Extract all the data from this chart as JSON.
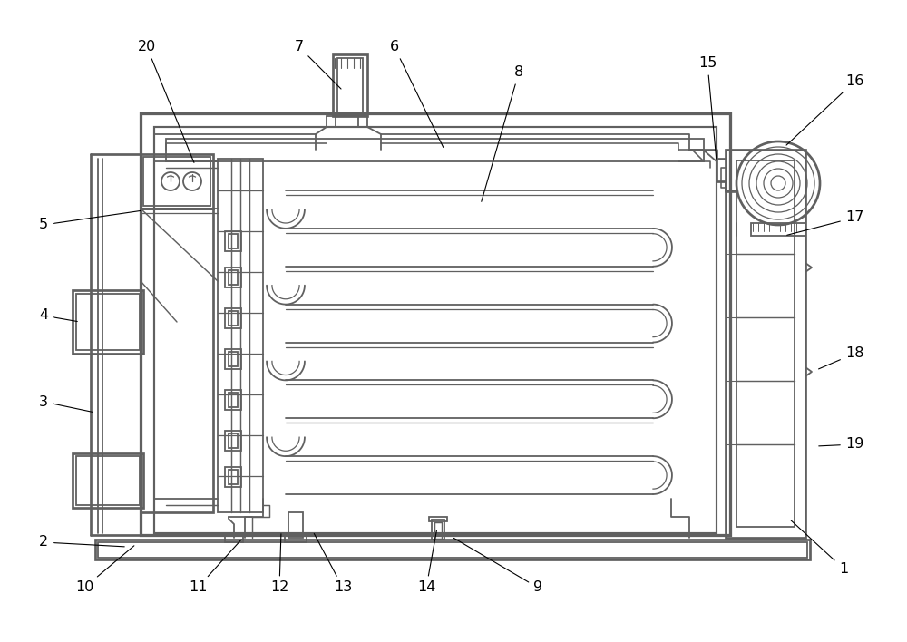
{
  "bg_color": "#ffffff",
  "lc": "#606060",
  "lw": 1.3,
  "fig_w": 10.0,
  "fig_h": 7.08,
  "labels": [
    [
      1,
      930,
      627,
      870,
      572
    ],
    [
      2,
      48,
      598,
      140,
      603
    ],
    [
      3,
      48,
      443,
      105,
      455
    ],
    [
      4,
      48,
      348,
      88,
      355
    ],
    [
      5,
      48,
      248,
      158,
      232
    ],
    [
      6,
      435,
      52,
      490,
      165
    ],
    [
      7,
      330,
      52,
      378,
      100
    ],
    [
      8,
      572,
      80,
      530,
      225
    ],
    [
      9,
      593,
      648,
      498,
      592
    ],
    [
      10,
      93,
      648,
      150,
      600
    ],
    [
      11,
      218,
      648,
      268,
      593
    ],
    [
      12,
      308,
      648,
      310,
      586
    ],
    [
      13,
      378,
      648,
      345,
      586
    ],
    [
      14,
      470,
      648,
      482,
      582
    ],
    [
      15,
      780,
      70,
      790,
      178
    ],
    [
      16,
      942,
      90,
      865,
      162
    ],
    [
      17,
      942,
      240,
      865,
      260
    ],
    [
      18,
      942,
      390,
      900,
      408
    ],
    [
      19,
      942,
      490,
      900,
      492
    ],
    [
      20,
      162,
      52,
      215,
      182
    ]
  ]
}
